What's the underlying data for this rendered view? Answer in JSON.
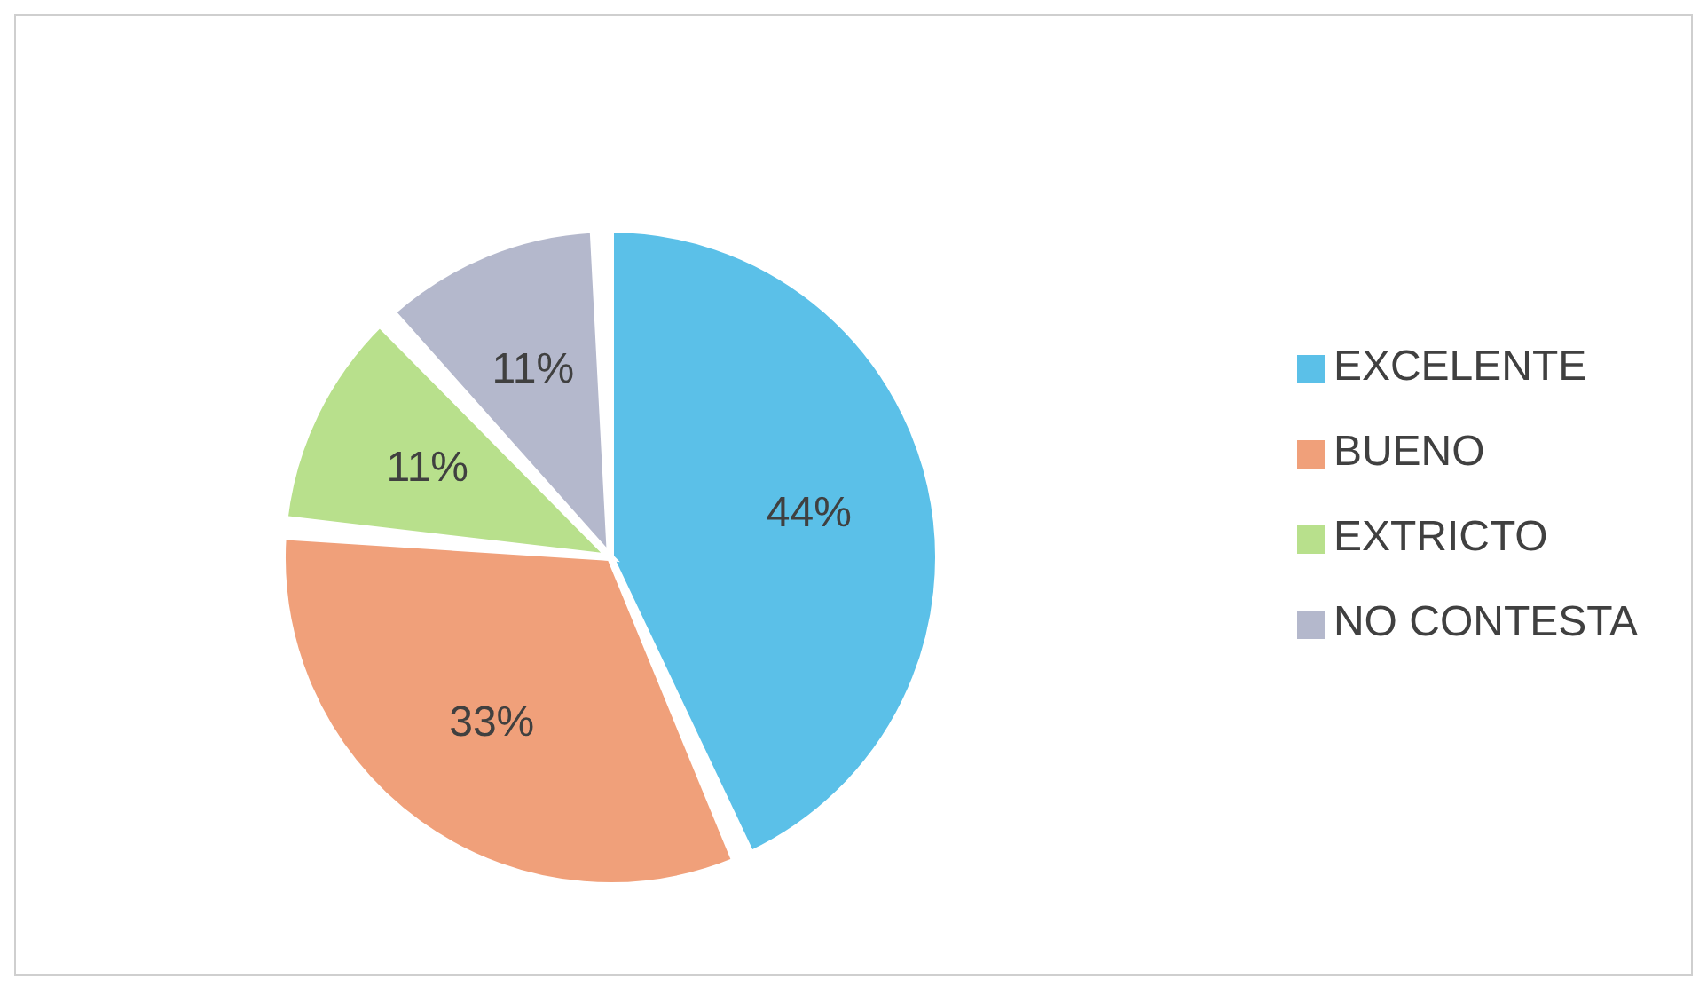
{
  "chart_data": {
    "type": "pie",
    "categories": [
      "EXCELENTE",
      "BUENO",
      "EXTRICTO",
      "NO CONTESTA"
    ],
    "values": [
      44,
      33,
      11,
      11
    ],
    "colors": [
      "#5bc0e8",
      "#f0a07a",
      "#b8e08c",
      "#b4b8cc"
    ],
    "value_labels": [
      "44%",
      "33%",
      "11%",
      "11%"
    ],
    "legend": "right"
  }
}
